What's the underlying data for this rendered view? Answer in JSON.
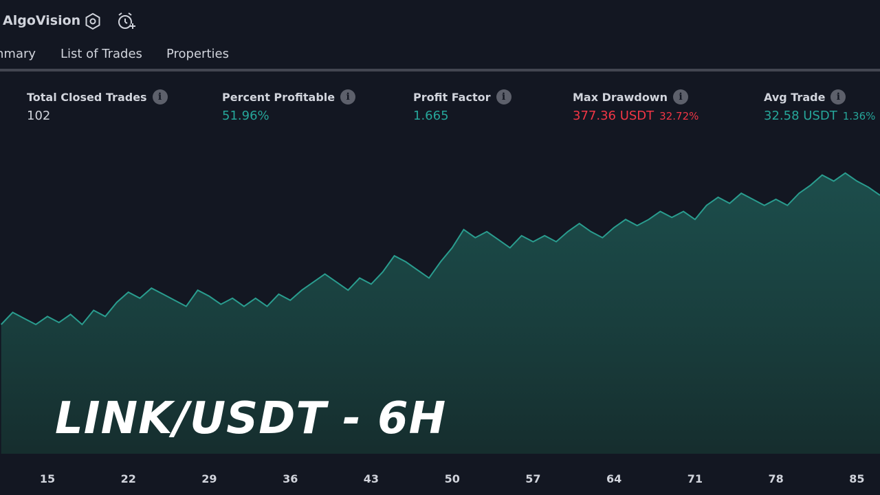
{
  "header": {
    "title": "AlgoVision",
    "settings_icon": "gear-hexagon-icon",
    "alert_icon": "add-alert-icon"
  },
  "tabs": [
    {
      "label": "nmary"
    },
    {
      "label": "List of Trades"
    },
    {
      "label": "Properties"
    }
  ],
  "metrics": [
    {
      "label": "Total Closed Trades",
      "value": "102",
      "sub": ""
    },
    {
      "label": "Percent Profitable",
      "value": "51.96%",
      "sub": ""
    },
    {
      "label": "Profit Factor",
      "value": "1.665",
      "sub": ""
    },
    {
      "label": "Max Drawdown",
      "value": "377.36 USDT",
      "sub": "32.72%"
    },
    {
      "label": "Avg Trade",
      "value": "32.58 USDT",
      "sub": "1.36%"
    }
  ],
  "colors": {
    "background": "#131722",
    "positive": "#26a69a",
    "negative": "#f23645",
    "line": "#2a9d8f"
  },
  "overlay_title": "LINK/USDT - 6H",
  "chart_data": {
    "type": "area",
    "x_ticks": [
      "15",
      "22",
      "29",
      "36",
      "43",
      "50",
      "57",
      "64",
      "71",
      "78",
      "85"
    ],
    "x": [
      11,
      12,
      13,
      14,
      15,
      16,
      17,
      18,
      19,
      20,
      21,
      22,
      23,
      24,
      25,
      26,
      27,
      28,
      29,
      30,
      31,
      32,
      33,
      34,
      35,
      36,
      37,
      38,
      39,
      40,
      41,
      42,
      43,
      44,
      45,
      46,
      47,
      48,
      49,
      50,
      51,
      52,
      53,
      54,
      55,
      56,
      57,
      58,
      59,
      60,
      61,
      62,
      63,
      64,
      65,
      66,
      67,
      68,
      69,
      70,
      71,
      72,
      73,
      74,
      75,
      76,
      77,
      78,
      79,
      80,
      81,
      82,
      83,
      84,
      85,
      86,
      87
    ],
    "values": [
      0.04,
      0.1,
      0.07,
      0.04,
      0.08,
      0.05,
      0.09,
      0.04,
      0.11,
      0.08,
      0.15,
      0.2,
      0.17,
      0.22,
      0.19,
      0.16,
      0.13,
      0.21,
      0.18,
      0.14,
      0.17,
      0.13,
      0.17,
      0.13,
      0.19,
      0.16,
      0.21,
      0.25,
      0.29,
      0.25,
      0.21,
      0.27,
      0.24,
      0.3,
      0.38,
      0.35,
      0.31,
      0.27,
      0.35,
      0.42,
      0.51,
      0.47,
      0.5,
      0.46,
      0.42,
      0.48,
      0.45,
      0.48,
      0.45,
      0.5,
      0.54,
      0.5,
      0.47,
      0.52,
      0.56,
      0.53,
      0.56,
      0.6,
      0.57,
      0.6,
      0.56,
      0.63,
      0.67,
      0.64,
      0.69,
      0.66,
      0.63,
      0.66,
      0.63,
      0.69,
      0.73,
      0.78,
      0.75,
      0.79,
      0.75,
      0.72,
      0.68
    ],
    "ylim": [
      -0.6,
      1.0
    ],
    "grid": false
  }
}
